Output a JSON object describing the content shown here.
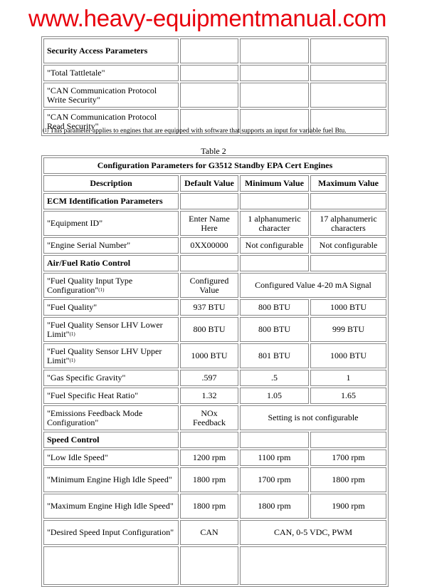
{
  "table1": {
    "rows": [
      {
        "label": "Security Access Parameters",
        "bold": true
      },
      {
        "label": "\"Total Tattletale\""
      },
      {
        "label": "\"CAN Communication Protocol Write Security\""
      },
      {
        "label": "\"CAN Communication Protocol Read Security\""
      }
    ]
  },
  "footnote": {
    "marker": "(1)",
    "text": "This parameter applies to engines that are equipped with software that supports an input for variable fuel Btu."
  },
  "caption": "Table 2",
  "table2": {
    "title": "Configuration Parameters for G3512 Standby EPA Cert Engines",
    "headers": [
      "Description",
      "Default Value",
      "Minimum Value",
      "Maximum Value"
    ],
    "rows": [
      {
        "section": "ECM Identification Parameters"
      },
      {
        "cells": [
          "\"Equipment ID\"",
          "Enter Name Here",
          "1 alphanumeric character",
          "17 alphanumeric characters"
        ]
      },
      {
        "cells": [
          "\"Engine Serial Number\"",
          "0XX00000",
          "Not configurable",
          "Not configurable"
        ]
      },
      {
        "section": "Air/Fuel Ratio Control"
      },
      {
        "cells": [
          "\"Fuel Quality Input Type Configuration\"",
          "Configured Value",
          "Configured Value 4-20 mA Signal"
        ],
        "sup": "(1)",
        "span": true
      },
      {
        "cells": [
          "\"Fuel Quality\"",
          "937 BTU",
          "800 BTU",
          "1000 BTU"
        ]
      },
      {
        "cells": [
          "\"Fuel Quality Sensor LHV Lower Limit\"",
          "800 BTU",
          "800 BTU",
          "999 BTU"
        ],
        "sup": "(1)"
      },
      {
        "cells": [
          "\"Fuel Quality Sensor LHV Upper Limit\"",
          "1000 BTU",
          "801 BTU",
          "1000 BTU"
        ],
        "sup": "(1)"
      },
      {
        "cells": [
          "\"Gas Specific Gravity\"",
          ".597",
          ".5",
          "1"
        ]
      },
      {
        "cells": [
          "\"Fuel Specific Heat Ratio\"",
          "1.32",
          "1.05",
          "1.65"
        ]
      },
      {
        "cells": [
          "\"Emissions Feedback Mode Configuration\"",
          "NOx Feedback",
          "Setting is not configurable"
        ],
        "span": true
      },
      {
        "section": "Speed Control"
      },
      {
        "cells": [
          "\"Low Idle Speed\"",
          "1200 rpm",
          "1100 rpm",
          "1700 rpm"
        ]
      },
      {
        "cells": [
          "\"Minimum Engine High Idle Speed\"",
          "1800 rpm",
          "1700 rpm",
          "1800 rpm"
        ]
      },
      {
        "cells": [
          "\"Maximum Engine High Idle Speed\"",
          "1800 rpm",
          "1800 rpm",
          "1900 rpm"
        ]
      },
      {
        "cells": [
          "\"Desired Speed Input Configuration\"",
          "CAN",
          "CAN, 0-5 VDC, PWM"
        ],
        "span": true
      },
      {
        "cells": [
          "",
          "",
          ""
        ],
        "span": true
      }
    ]
  },
  "watermark": "www.heavy-equipmentmanual.com"
}
